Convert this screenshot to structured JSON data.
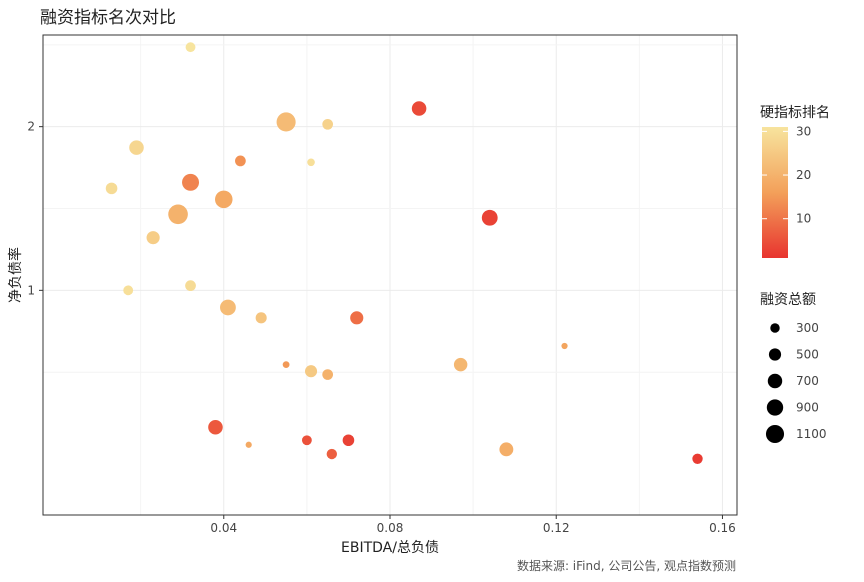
{
  "title": "融资指标名次对比",
  "source": "数据来源: iFind, 公司公告, 观点指数预测",
  "chart_data": {
    "type": "scatter",
    "title": "融资指标名次对比",
    "xlabel": "EBITDA/总负债",
    "ylabel": "净负债率",
    "xlim": [
      -0.0035,
      0.1635
    ],
    "ylim": [
      0.3862,
      2.9485
    ],
    "y_scale": "log10",
    "x_ticks": [
      0.04,
      0.08,
      0.12,
      0.16
    ],
    "x_tick_labels": [
      "0.04",
      "0.08",
      "0.12",
      "0.16"
    ],
    "y_ticks": [
      1,
      2
    ],
    "y_tick_labels": [
      "1",
      "2"
    ],
    "grid": true,
    "legend_position": "right",
    "color_legend": {
      "title": "硬指标排名",
      "ticks": [
        10,
        20,
        30
      ],
      "min": 1,
      "max": 31,
      "colors": [
        "#e8342f",
        "#f3a05a",
        "#f7e49e"
      ]
    },
    "size_legend": {
      "title": "融资总额",
      "values": [
        300,
        500,
        700,
        900,
        1100
      ]
    },
    "points": [
      {
        "x": 0.032,
        "y": 2.8,
        "rank": 31,
        "amount": 250
      },
      {
        "x": 0.087,
        "y": 2.16,
        "rank": 4,
        "amount": 550
      },
      {
        "x": 0.055,
        "y": 2.04,
        "rank": 22,
        "amount": 950
      },
      {
        "x": 0.065,
        "y": 2.02,
        "rank": 27,
        "amount": 300
      },
      {
        "x": 0.019,
        "y": 1.83,
        "rank": 28,
        "amount": 550
      },
      {
        "x": 0.044,
        "y": 1.73,
        "rank": 14,
        "amount": 300
      },
      {
        "x": 0.061,
        "y": 1.72,
        "rank": 30,
        "amount": 150
      },
      {
        "x": 0.032,
        "y": 1.58,
        "rank": 12,
        "amount": 750
      },
      {
        "x": 0.013,
        "y": 1.54,
        "rank": 29,
        "amount": 350
      },
      {
        "x": 0.04,
        "y": 1.47,
        "rank": 18,
        "amount": 800
      },
      {
        "x": 0.029,
        "y": 1.38,
        "rank": 20,
        "amount": 1000
      },
      {
        "x": 0.104,
        "y": 1.36,
        "rank": 3,
        "amount": 650
      },
      {
        "x": 0.023,
        "y": 1.25,
        "rank": 26,
        "amount": 450
      },
      {
        "x": 0.017,
        "y": 1.0,
        "rank": 30,
        "amount": 250
      },
      {
        "x": 0.032,
        "y": 1.02,
        "rank": 29,
        "amount": 300
      },
      {
        "x": 0.041,
        "y": 0.93,
        "rank": 22,
        "amount": 650
      },
      {
        "x": 0.049,
        "y": 0.89,
        "rank": 24,
        "amount": 320
      },
      {
        "x": 0.072,
        "y": 0.89,
        "rank": 9,
        "amount": 450
      },
      {
        "x": 0.055,
        "y": 0.73,
        "rank": 15,
        "amount": 120
      },
      {
        "x": 0.061,
        "y": 0.71,
        "rank": 25,
        "amount": 380
      },
      {
        "x": 0.065,
        "y": 0.7,
        "rank": 20,
        "amount": 300
      },
      {
        "x": 0.097,
        "y": 0.73,
        "rank": 21,
        "amount": 470
      },
      {
        "x": 0.122,
        "y": 0.79,
        "rank": 17,
        "amount": 100
      },
      {
        "x": 0.038,
        "y": 0.56,
        "rank": 6,
        "amount": 550
      },
      {
        "x": 0.046,
        "y": 0.52,
        "rank": 18,
        "amount": 100
      },
      {
        "x": 0.06,
        "y": 0.53,
        "rank": 5,
        "amount": 250
      },
      {
        "x": 0.07,
        "y": 0.53,
        "rank": 3,
        "amount": 350
      },
      {
        "x": 0.066,
        "y": 0.5,
        "rank": 7,
        "amount": 280
      },
      {
        "x": 0.108,
        "y": 0.51,
        "rank": 19,
        "amount": 500
      },
      {
        "x": 0.154,
        "y": 0.49,
        "rank": 2,
        "amount": 280
      }
    ]
  }
}
